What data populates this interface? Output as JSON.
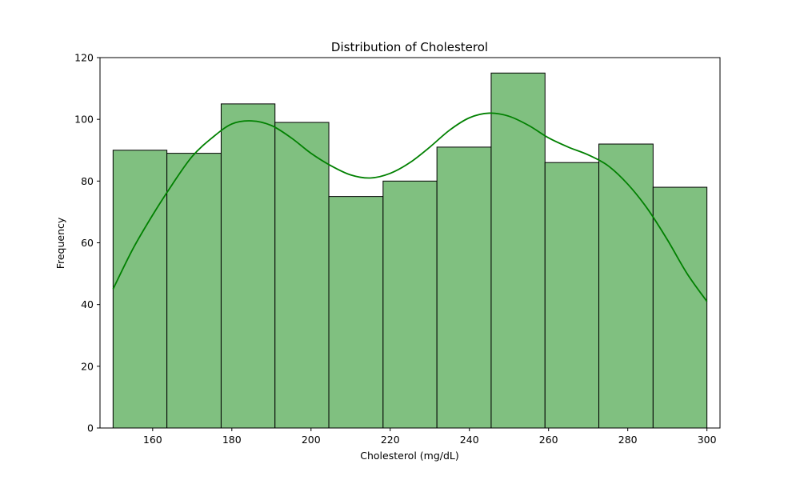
{
  "chart_data": {
    "type": "bar",
    "title": "Distribution of Cholesterol",
    "xlabel": "Cholesterol (mg/dL)",
    "ylabel": "Frequency",
    "bins": [
      {
        "x0": 150.0,
        "x1": 163.6,
        "count": 90
      },
      {
        "x0": 163.6,
        "x1": 177.3,
        "count": 89
      },
      {
        "x0": 177.3,
        "x1": 190.9,
        "count": 105
      },
      {
        "x0": 190.9,
        "x1": 204.5,
        "count": 99
      },
      {
        "x0": 204.5,
        "x1": 218.2,
        "count": 75
      },
      {
        "x0": 218.2,
        "x1": 231.8,
        "count": 80
      },
      {
        "x0": 231.8,
        "x1": 245.5,
        "count": 91
      },
      {
        "x0": 245.5,
        "x1": 259.1,
        "count": 115
      },
      {
        "x0": 259.1,
        "x1": 272.7,
        "count": 86
      },
      {
        "x0": 272.7,
        "x1": 286.4,
        "count": 92
      },
      {
        "x0": 286.4,
        "x1": 300.0,
        "count": 78
      }
    ],
    "kde": {
      "x": [
        150,
        155,
        160,
        165,
        170,
        175,
        180,
        185,
        190,
        195,
        200,
        205,
        210,
        215,
        220,
        225,
        230,
        235,
        240,
        245,
        250,
        255,
        260,
        265,
        270,
        275,
        280,
        285,
        290,
        295,
        300
      ],
      "y": [
        45,
        58,
        69,
        79,
        88,
        94,
        98.5,
        99.5,
        98,
        94,
        89,
        85,
        82,
        81,
        82.5,
        86,
        91,
        96.5,
        100.5,
        102,
        101,
        98,
        94,
        91,
        88.5,
        85,
        79,
        71,
        61,
        50,
        41
      ]
    },
    "xlim": [
      146.7,
      303.3
    ],
    "ylim": [
      0,
      120
    ],
    "xticks": [
      160,
      180,
      200,
      220,
      240,
      260,
      280,
      300
    ],
    "yticks": [
      0,
      20,
      40,
      60,
      80,
      100,
      120
    ],
    "grid": false,
    "bar_color": "#80c080",
    "bar_edge_color": "#000000",
    "kde_color": "#008000"
  }
}
